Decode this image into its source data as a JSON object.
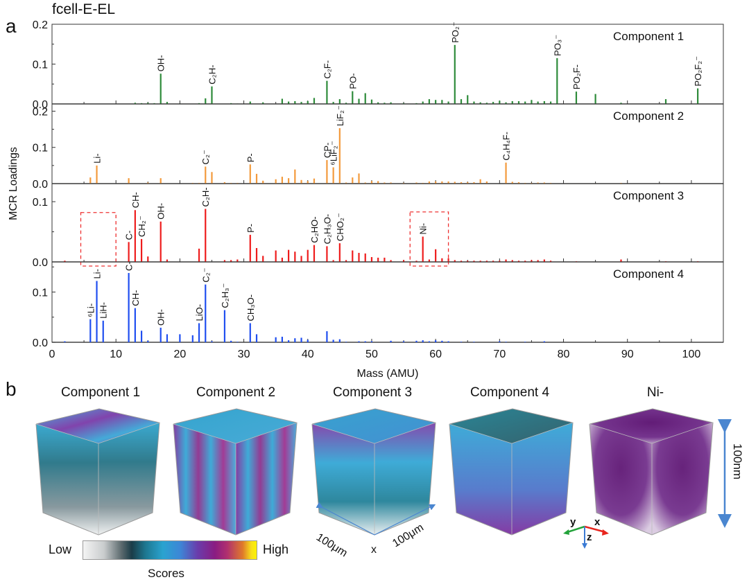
{
  "figure": {
    "title": "fcell-E-EL",
    "panel_a_label": "a",
    "panel_b_label": "b"
  },
  "chart_data": {
    "type": "bar",
    "subtype": "stacked-panel stem spectra",
    "xlabel": "Mass (AMU)",
    "ylabel": "MCR Loadings",
    "xlim": [
      0,
      105
    ],
    "xticks": [
      0,
      10,
      20,
      30,
      40,
      50,
      60,
      70,
      80,
      90,
      100
    ],
    "grid": false,
    "series": [
      {
        "name": "Component 1",
        "color": "#2e8b3a",
        "ylim": [
          0,
          0.2
        ],
        "yticks": [
          "0.0",
          "0.1",
          "0.2"
        ],
        "peaks": [
          [
            13,
            0.003
          ],
          [
            14,
            0.002
          ],
          [
            15,
            0.003
          ],
          [
            16,
            0.002
          ],
          [
            17,
            0.076
          ],
          [
            18,
            0.005
          ],
          [
            20,
            0.001
          ],
          [
            23,
            0.002
          ],
          [
            24,
            0.014
          ],
          [
            25,
            0.044
          ],
          [
            28,
            0.002
          ],
          [
            29,
            0.001
          ],
          [
            31,
            0.006
          ],
          [
            33,
            0.004
          ],
          [
            36,
            0.013
          ],
          [
            37,
            0.006
          ],
          [
            38,
            0.007
          ],
          [
            39,
            0.005
          ],
          [
            40,
            0.007
          ],
          [
            41,
            0.015
          ],
          [
            43,
            0.058
          ],
          [
            44,
            0.005
          ],
          [
            45,
            0.012
          ],
          [
            46,
            0.003
          ],
          [
            47,
            0.032
          ],
          [
            48,
            0.013
          ],
          [
            49,
            0.027
          ],
          [
            50,
            0.011
          ],
          [
            51,
            0.004
          ],
          [
            52,
            0.003
          ],
          [
            53,
            0.004
          ],
          [
            55,
            0.002
          ],
          [
            57,
            0.002
          ],
          [
            58,
            0.006
          ],
          [
            59,
            0.012
          ],
          [
            60,
            0.01
          ],
          [
            61,
            0.01
          ],
          [
            62,
            0.006
          ],
          [
            63,
            0.148
          ],
          [
            64,
            0.012
          ],
          [
            65,
            0.022
          ],
          [
            66,
            0.006
          ],
          [
            67,
            0.004
          ],
          [
            68,
            0.003
          ],
          [
            69,
            0.005
          ],
          [
            70,
            0.008
          ],
          [
            71,
            0.004
          ],
          [
            72,
            0.007
          ],
          [
            73,
            0.007
          ],
          [
            74,
            0.006
          ],
          [
            75,
            0.01
          ],
          [
            76,
            0.006
          ],
          [
            77,
            0.007
          ],
          [
            78,
            0.006
          ],
          [
            79,
            0.115
          ],
          [
            82,
            0.031
          ],
          [
            85,
            0.025
          ],
          [
            89,
            0.003
          ],
          [
            96,
            0.012
          ],
          [
            101,
            0.039
          ]
        ],
        "labels": [
          {
            "m": 17,
            "text": "OH-"
          },
          {
            "m": 25,
            "text": "C₂H-"
          },
          {
            "m": 43,
            "text": "C₂F-"
          },
          {
            "m": 47,
            "text": "PO-"
          },
          {
            "m": 63,
            "text": "PO₂⁻"
          },
          {
            "m": 79,
            "text": "PO₃⁻"
          },
          {
            "m": 82,
            "text": "PO₂F-"
          },
          {
            "m": 101,
            "text": "PO₂F₂⁻"
          }
        ]
      },
      {
        "name": "Component 2",
        "color": "#f39a3c",
        "ylim": [
          0,
          0.22
        ],
        "yticks": [
          "0.0",
          "0.1",
          "0.2"
        ],
        "peaks": [
          [
            2,
            0.001
          ],
          [
            6,
            0.017
          ],
          [
            7,
            0.05
          ],
          [
            8,
            0.001
          ],
          [
            12,
            0.015
          ],
          [
            13,
            0.001
          ],
          [
            14,
            0.001
          ],
          [
            15,
            0.003
          ],
          [
            17,
            0.015
          ],
          [
            18,
            0.001
          ],
          [
            19,
            0.001
          ],
          [
            22,
            0.002
          ],
          [
            23,
            0.002
          ],
          [
            24,
            0.047
          ],
          [
            25,
            0.032
          ],
          [
            27,
            0.004
          ],
          [
            28,
            0.002
          ],
          [
            29,
            0.002
          ],
          [
            31,
            0.053
          ],
          [
            32,
            0.027
          ],
          [
            33,
            0.008
          ],
          [
            35,
            0.012
          ],
          [
            36,
            0.019
          ],
          [
            37,
            0.015
          ],
          [
            38,
            0.039
          ],
          [
            39,
            0.01
          ],
          [
            40,
            0.007
          ],
          [
            41,
            0.014
          ],
          [
            43,
            0.065
          ],
          [
            44,
            0.045
          ],
          [
            45,
            0.153
          ],
          [
            46,
            0.003
          ],
          [
            47,
            0.017
          ],
          [
            48,
            0.028
          ],
          [
            49,
            0.003
          ],
          [
            50,
            0.007
          ],
          [
            51,
            0.007
          ],
          [
            52,
            0.003
          ],
          [
            53,
            0.003
          ],
          [
            55,
            0.002
          ],
          [
            57,
            0.003
          ],
          [
            58,
            0.002
          ],
          [
            59,
            0.006
          ],
          [
            60,
            0.006
          ],
          [
            61,
            0.006
          ],
          [
            62,
            0.006
          ],
          [
            63,
            0.005
          ],
          [
            64,
            0.004
          ],
          [
            65,
            0.004
          ],
          [
            66,
            0.004
          ],
          [
            67,
            0.012
          ],
          [
            68,
            0.006
          ],
          [
            71,
            0.058
          ],
          [
            72,
            0.005
          ],
          [
            73,
            0.004
          ],
          [
            74,
            0.002
          ],
          [
            75,
            0.002
          ],
          [
            76,
            0.003
          ],
          [
            77,
            0.003
          ],
          [
            78,
            0.002
          ],
          [
            82,
            0.001
          ],
          [
            85,
            0.001
          ],
          [
            89,
            0.002
          ],
          [
            96,
            0.001
          ],
          [
            101,
            0.001
          ]
        ],
        "labels": [
          {
            "m": 7,
            "text": "Li-"
          },
          {
            "m": 24,
            "text": "C₂⁻"
          },
          {
            "m": 31,
            "text": "P-"
          },
          {
            "m": 43,
            "text": "CP-"
          },
          {
            "m": 44,
            "text": "⁶LiF₂⁻"
          },
          {
            "m": 45,
            "text": "LiF₂⁻"
          },
          {
            "m": 71,
            "text": "C₄H₄F-"
          }
        ]
      },
      {
        "name": "Component 3",
        "color": "#ee1c1c",
        "ylim": [
          0,
          0.13
        ],
        "yticks": [
          "0.0",
          "0.1"
        ],
        "peaks": [
          [
            2,
            0.002
          ],
          [
            12,
            0.033
          ],
          [
            13,
            0.086
          ],
          [
            14,
            0.038
          ],
          [
            15,
            0.009
          ],
          [
            17,
            0.067
          ],
          [
            18,
            0.004
          ],
          [
            23,
            0.022
          ],
          [
            24,
            0.088
          ],
          [
            27,
            0.003
          ],
          [
            28,
            0.003
          ],
          [
            29,
            0.004
          ],
          [
            31,
            0.045
          ],
          [
            32,
            0.023
          ],
          [
            33,
            0.01
          ],
          [
            35,
            0.019
          ],
          [
            36,
            0.007
          ],
          [
            37,
            0.02
          ],
          [
            38,
            0.017
          ],
          [
            39,
            0.01
          ],
          [
            40,
            0.02
          ],
          [
            41,
            0.028
          ],
          [
            43,
            0.026
          ],
          [
            44,
            0.003
          ],
          [
            45,
            0.031
          ],
          [
            46,
            0.003
          ],
          [
            47,
            0.019
          ],
          [
            48,
            0.015
          ],
          [
            49,
            0.014
          ],
          [
            50,
            0.008
          ],
          [
            51,
            0.007
          ],
          [
            52,
            0.007
          ],
          [
            53,
            0.003
          ],
          [
            55,
            0.003
          ],
          [
            57,
            0.002
          ],
          [
            58,
            0.042
          ],
          [
            59,
            0.004
          ],
          [
            60,
            0.021
          ],
          [
            61,
            0.006
          ],
          [
            62,
            0.006
          ],
          [
            63,
            0.003
          ],
          [
            64,
            0.002
          ],
          [
            65,
            0.002
          ],
          [
            66,
            0.002
          ],
          [
            67,
            0.002
          ],
          [
            68,
            0.002
          ],
          [
            69,
            0.002
          ],
          [
            70,
            0.002
          ],
          [
            71,
            0.004
          ],
          [
            72,
            0.003
          ],
          [
            73,
            0.002
          ],
          [
            74,
            0.002
          ],
          [
            75,
            0.003
          ],
          [
            76,
            0.003
          ],
          [
            77,
            0.004
          ],
          [
            78,
            0.002
          ],
          [
            82,
            0.001
          ],
          [
            89,
            0.004
          ],
          [
            96,
            0.001
          ],
          [
            101,
            0.001
          ]
        ],
        "labels": [
          {
            "m": 12,
            "text": "C-"
          },
          {
            "m": 13,
            "text": "CH-"
          },
          {
            "m": 14,
            "text": "CH₂⁻"
          },
          {
            "m": 17,
            "text": "OH-"
          },
          {
            "m": 24,
            "text": "C₂H-"
          },
          {
            "m": 31,
            "text": "P-"
          },
          {
            "m": 41,
            "text": "C₂HO-"
          },
          {
            "m": 43,
            "text": "C₂H₃O-"
          },
          {
            "m": 45,
            "text": "CHO₂⁻"
          },
          {
            "m": 58,
            "text": "Ni-"
          }
        ],
        "highlight_boxes": [
          {
            "x_range": [
              4.5,
              10
            ],
            "y_top": 0.082
          },
          {
            "x_range": [
              56,
              62
            ],
            "y_top": 0.083
          }
        ]
      },
      {
        "name": "Component 4",
        "color": "#1f4ef0",
        "ylim": [
          0,
          0.16
        ],
        "yticks": [
          "0.0",
          "0.1"
        ],
        "peaks": [
          [
            2,
            0.002
          ],
          [
            6,
            0.046
          ],
          [
            7,
            0.122
          ],
          [
            8,
            0.043
          ],
          [
            12,
            0.138
          ],
          [
            13,
            0.068
          ],
          [
            14,
            0.023
          ],
          [
            15,
            0.003
          ],
          [
            17,
            0.029
          ],
          [
            18,
            0.016
          ],
          [
            20,
            0.016
          ],
          [
            22,
            0.014
          ],
          [
            23,
            0.038
          ],
          [
            24,
            0.115
          ],
          [
            25,
            0.002
          ],
          [
            27,
            0.064
          ],
          [
            28,
            0.003
          ],
          [
            29,
            0.001
          ],
          [
            31,
            0.038
          ],
          [
            32,
            0.016
          ],
          [
            35,
            0.01
          ],
          [
            36,
            0.011
          ],
          [
            37,
            0.004
          ],
          [
            38,
            0.008
          ],
          [
            39,
            0.009
          ],
          [
            40,
            0.005
          ],
          [
            43,
            0.022
          ],
          [
            44,
            0.005
          ],
          [
            45,
            0.006
          ],
          [
            46,
            0.001
          ],
          [
            48,
            0.002
          ],
          [
            49,
            0.002
          ],
          [
            50,
            0.002
          ],
          [
            53,
            0.003
          ],
          [
            55,
            0.002
          ],
          [
            57,
            0.003
          ],
          [
            58,
            0.004
          ],
          [
            59,
            0.002
          ],
          [
            60,
            0.004
          ],
          [
            61,
            0.003
          ],
          [
            62,
            0.002
          ],
          [
            64,
            0.001
          ],
          [
            66,
            0.001
          ],
          [
            70,
            0.002
          ],
          [
            71,
            0.001
          ],
          [
            74,
            0.001
          ],
          [
            77,
            0.002
          ]
        ],
        "labels": [
          {
            "m": 6,
            "text": "⁶Li-"
          },
          {
            "m": 7,
            "text": "Li-"
          },
          {
            "m": 8,
            "text": "LiH-"
          },
          {
            "m": 12,
            "text": "C-"
          },
          {
            "m": 13,
            "text": "CH-"
          },
          {
            "m": 17,
            "text": "OH-"
          },
          {
            "m": 23,
            "text": "LiO-"
          },
          {
            "m": 24,
            "text": "C₂⁻"
          },
          {
            "m": 27,
            "text": "C₂H₃⁻"
          },
          {
            "m": 31,
            "text": "CH₃O-"
          }
        ]
      }
    ]
  },
  "panel_b": {
    "cubes": [
      {
        "title": "Component 1",
        "scheme": "c1"
      },
      {
        "title": "Component 2",
        "scheme": "c2"
      },
      {
        "title": "Component 3",
        "scheme": "c3"
      },
      {
        "title": "Component 4",
        "scheme": "c4"
      },
      {
        "title": "Ni-",
        "scheme": "ni"
      }
    ],
    "colorbar": {
      "low": "Low",
      "high": "High",
      "title": "Scores"
    },
    "scale_x_label": "100μm",
    "scale_y_label": "100μm",
    "axis_x_letter": "x",
    "z_scale_label": "100nm",
    "triad": {
      "x": "x",
      "y": "y",
      "z": "z",
      "x_color": "#e8251e",
      "y_color": "#23a23a",
      "z_color": "#3b7bd4"
    },
    "scale_arrow_color": "#4a86d0"
  }
}
